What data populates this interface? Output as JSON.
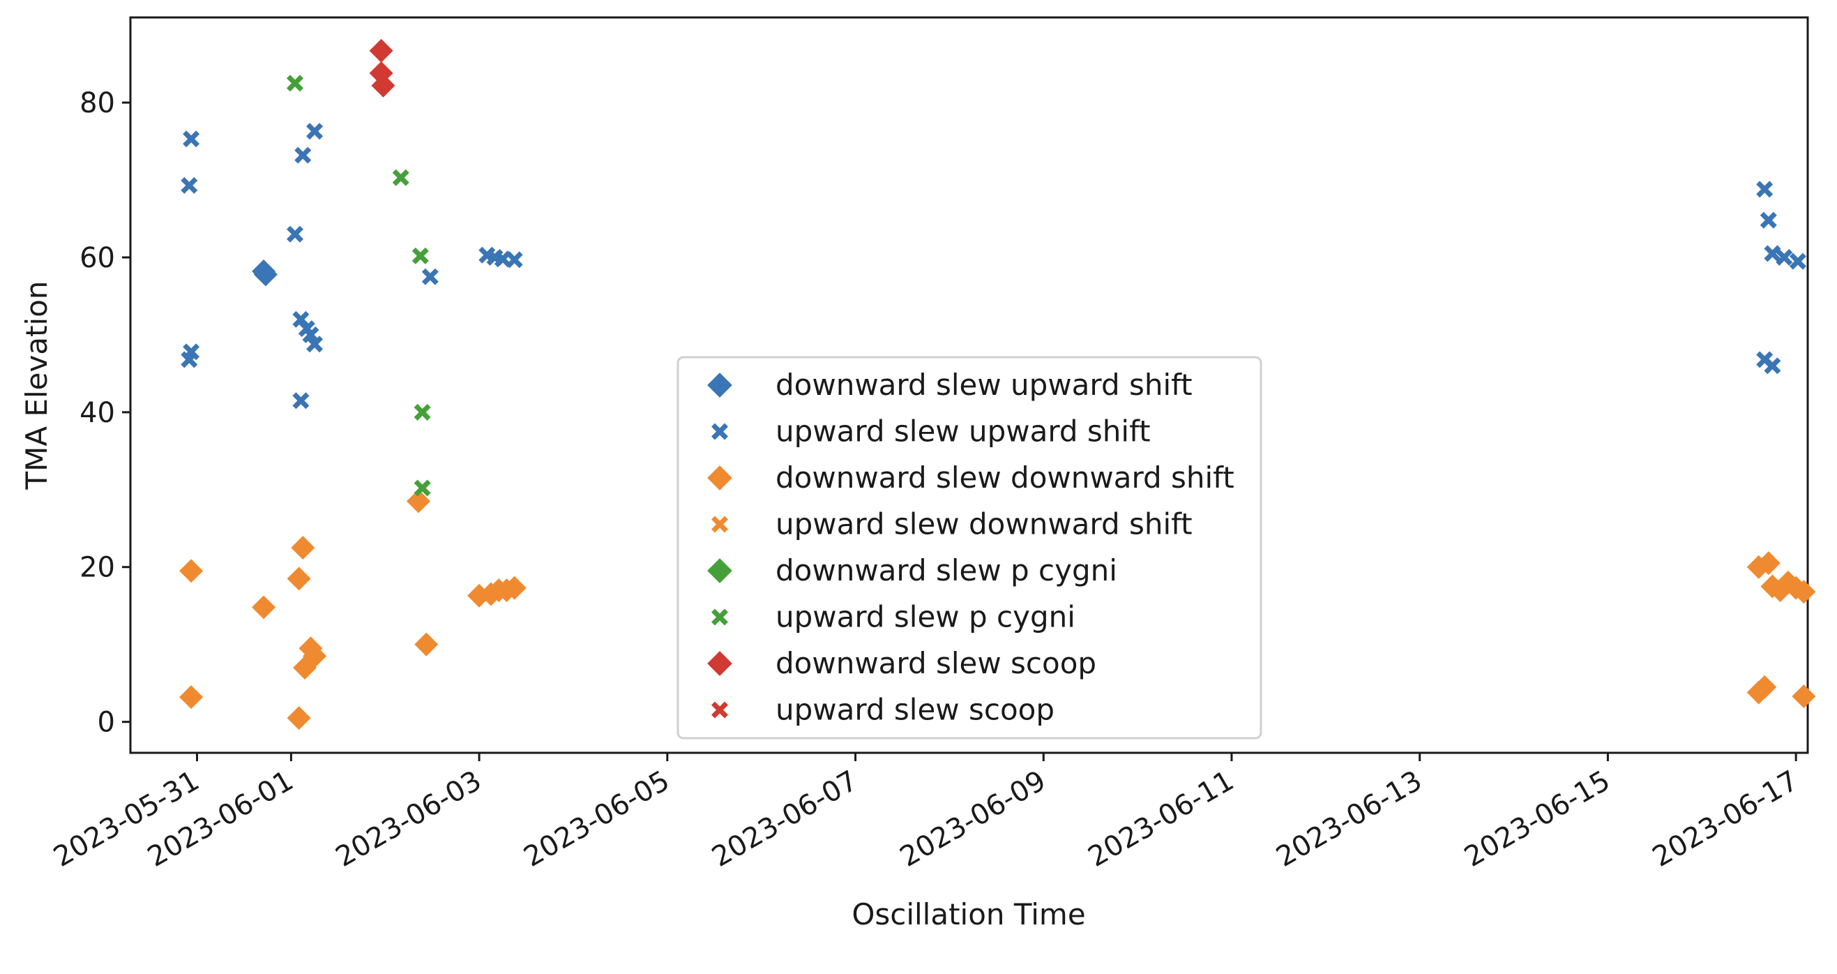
{
  "chart_data": {
    "type": "scatter",
    "title": "",
    "xlabel": "Oscillation Time",
    "ylabel": "TMA Elevation",
    "x_is_date": true,
    "xlim": [
      "2023-05-30 07:00",
      "2023-06-17 03:00"
    ],
    "ylim": [
      -4,
      91
    ],
    "x_ticks": [
      "2023-05-31",
      "2023-06-01",
      "2023-06-03",
      "2023-06-05",
      "2023-06-07",
      "2023-06-09",
      "2023-06-11",
      "2023-06-13",
      "2023-06-15",
      "2023-06-17"
    ],
    "y_ticks": [
      0,
      20,
      40,
      60,
      80
    ],
    "grid": false,
    "legend_position": "lower center",
    "series": [
      {
        "name": "downward slew upward shift",
        "marker": "diamond",
        "color": "#3a75b5",
        "points": [
          [
            "2023-05-31 17:00",
            58.2
          ],
          [
            "2023-05-31 17:30",
            57.8
          ]
        ]
      },
      {
        "name": "upward slew upward shift",
        "marker": "x",
        "color": "#3a75b5",
        "points": [
          [
            "2023-05-30 22:30",
            75.3
          ],
          [
            "2023-05-30 22:00",
            69.3
          ],
          [
            "2023-05-30 22:30",
            47.8
          ],
          [
            "2023-05-30 22:00",
            46.8
          ],
          [
            "2023-06-01 01:00",
            63.0
          ],
          [
            "2023-06-01 03:00",
            73.2
          ],
          [
            "2023-06-01 06:00",
            76.3
          ],
          [
            "2023-06-01 02:30",
            52.0
          ],
          [
            "2023-06-01 04:00",
            50.8
          ],
          [
            "2023-06-01 05:00",
            50.0
          ],
          [
            "2023-06-01 06:00",
            48.8
          ],
          [
            "2023-06-01 02:30",
            41.5
          ],
          [
            "2023-06-02 11:30",
            57.5
          ],
          [
            "2023-06-03 02:00",
            60.3
          ],
          [
            "2023-06-03 04:00",
            60.0
          ],
          [
            "2023-06-03 06:00",
            59.8
          ],
          [
            "2023-06-03 09:00",
            59.7
          ],
          [
            "2023-06-16 16:00",
            68.8
          ],
          [
            "2023-06-16 17:00",
            64.8
          ],
          [
            "2023-06-16 18:00",
            60.5
          ],
          [
            "2023-06-16 21:00",
            60.0
          ],
          [
            "2023-06-17 00:30",
            59.5
          ],
          [
            "2023-06-16 16:00",
            46.8
          ],
          [
            "2023-06-16 18:00",
            46.0
          ]
        ]
      },
      {
        "name": "downward slew downward shift",
        "marker": "diamond",
        "color": "#f08a30",
        "points": [
          [
            "2023-05-30 22:30",
            19.5
          ],
          [
            "2023-05-30 22:30",
            3.2
          ],
          [
            "2023-05-31 17:00",
            14.8
          ],
          [
            "2023-06-01 02:00",
            18.5
          ],
          [
            "2023-06-01 03:00",
            22.5
          ],
          [
            "2023-06-01 02:00",
            0.5
          ],
          [
            "2023-06-01 05:00",
            9.5
          ],
          [
            "2023-06-01 06:00",
            8.5
          ],
          [
            "2023-06-01 03:30",
            7.0
          ],
          [
            "2023-06-02 08:30",
            28.5
          ],
          [
            "2023-06-02 10:30",
            10.0
          ],
          [
            "2023-06-03 00:00",
            16.3
          ],
          [
            "2023-06-03 03:00",
            16.5
          ],
          [
            "2023-06-03 05:00",
            17.0
          ],
          [
            "2023-06-03 07:00",
            17.0
          ],
          [
            "2023-06-03 09:00",
            17.3
          ],
          [
            "2023-06-16 14:30",
            20.0
          ],
          [
            "2023-06-16 17:00",
            20.5
          ],
          [
            "2023-06-16 18:00",
            17.5
          ],
          [
            "2023-06-16 20:00",
            17.0
          ],
          [
            "2023-06-16 22:00",
            18.0
          ],
          [
            "2023-06-17 00:00",
            17.3
          ],
          [
            "2023-06-17 02:00",
            16.8
          ],
          [
            "2023-06-16 14:30",
            3.8
          ],
          [
            "2023-06-16 16:00",
            4.5
          ],
          [
            "2023-06-17 02:00",
            3.3
          ]
        ]
      },
      {
        "name": "upward slew downward shift",
        "marker": "x",
        "color": "#f08a30",
        "points": []
      },
      {
        "name": "downward slew p cygni",
        "marker": "diamond",
        "color": "#45a03a",
        "points": []
      },
      {
        "name": "upward slew p cygni",
        "marker": "x",
        "color": "#45a03a",
        "points": [
          [
            "2023-06-01 01:00",
            82.5
          ],
          [
            "2023-06-02 04:00",
            70.3
          ],
          [
            "2023-06-02 09:00",
            60.2
          ],
          [
            "2023-06-02 09:30",
            40.0
          ],
          [
            "2023-06-02 09:30",
            30.2
          ]
        ]
      },
      {
        "name": "downward slew scoop",
        "marker": "diamond",
        "color": "#d03a32",
        "points": [
          [
            "2023-06-01 23:00",
            86.7
          ],
          [
            "2023-06-01 23:00",
            83.8
          ],
          [
            "2023-06-01 23:30",
            82.2
          ]
        ]
      },
      {
        "name": "upward slew scoop",
        "marker": "x",
        "color": "#d03a32",
        "points": []
      }
    ]
  }
}
